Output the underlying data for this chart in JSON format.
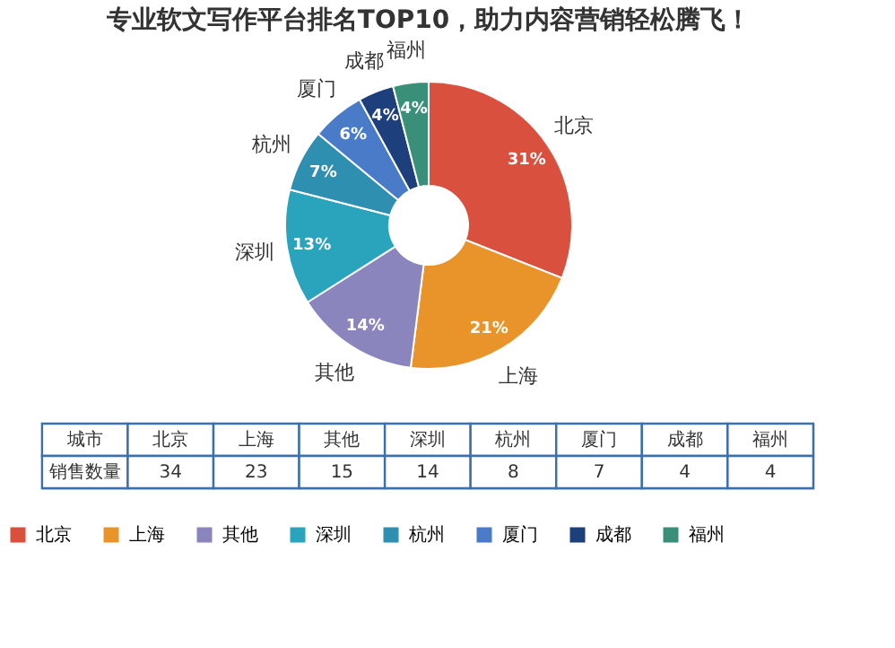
{
  "chart_data": [
    {
      "type": "donut",
      "title": "专业软文写作平台排名TOP10，助力内容营销轻松腾飞！",
      "categories": [
        "北京",
        "上海",
        "其他",
        "深圳",
        "杭州",
        "厦门",
        "成都",
        "福州"
      ],
      "values": [
        31,
        21,
        14,
        13,
        7,
        6,
        4,
        4
      ],
      "colors": [
        "#d9503f",
        "#e8942a",
        "#8a86bd",
        "#2aa3bd",
        "#2f8fb0",
        "#4a7bc9",
        "#1d3f7c",
        "#3a8f78"
      ],
      "value_labels": [
        "31%",
        "21%",
        "14%",
        "13%",
        "7%",
        "6%",
        "4%",
        "4%"
      ],
      "legend": "bottom"
    },
    {
      "type": "other",
      "categories": [
        "北京",
        "上海",
        "其他",
        "深圳",
        "杭州",
        "厦门",
        "成都",
        "福州"
      ],
      "values": [
        34,
        23,
        15,
        14,
        8,
        7,
        4,
        4
      ],
      "xlabel": "城市",
      "ylabel": "销售数量",
      "data_labels": true
    }
  ]
}
